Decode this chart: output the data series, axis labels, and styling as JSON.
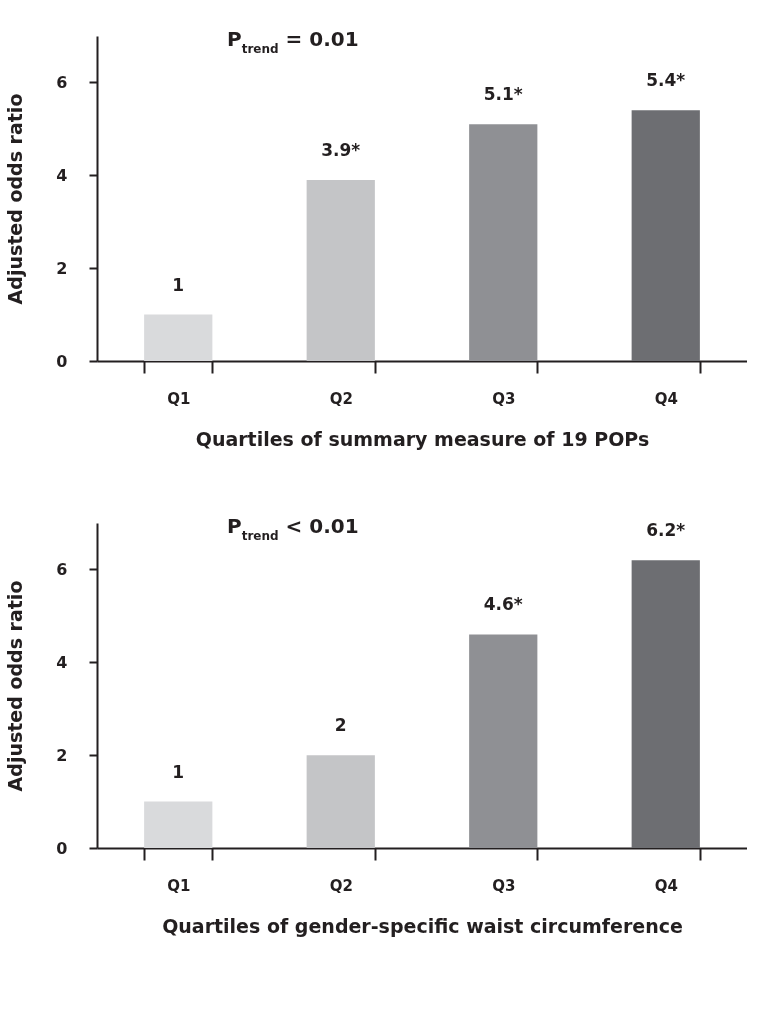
{
  "chart_data": [
    {
      "type": "bar",
      "xlabel": "Quartiles of summary measure of 19 POPs",
      "ylabel": "Adjusted odds ratio",
      "categories": [
        "Q1",
        "Q2",
        "Q3",
        "Q4"
      ],
      "values": [
        1,
        3.9,
        5.1,
        5.4
      ],
      "value_labels": [
        "1",
        "3.9*",
        "5.1*",
        "5.4*"
      ],
      "colors": [
        "#d9dadc",
        "#c4c5c7",
        "#8f9094",
        "#6d6e72"
      ],
      "ylim": [
        0,
        7
      ],
      "yticks": [
        0,
        2,
        4,
        6
      ],
      "annotations": [
        "P$_{trend}$ = 0.01"
      ]
    },
    {
      "type": "bar",
      "xlabel": "Quartiles of gender-specific waist circumference",
      "ylabel": "Adjusted odds ratio",
      "categories": [
        "Q1",
        "Q2",
        "Q3",
        "Q4"
      ],
      "values": [
        1,
        2,
        4.6,
        6.2
      ],
      "value_labels": [
        "1",
        "2",
        "4.6*",
        "6.2*"
      ],
      "colors": [
        "#d9dadc",
        "#c4c5c7",
        "#8f9094",
        "#6d6e72"
      ],
      "ylim": [
        0,
        7
      ],
      "yticks": [
        0,
        2,
        4,
        6
      ],
      "annotations": [
        "P$_{trend}$ < 0.01"
      ]
    }
  ]
}
